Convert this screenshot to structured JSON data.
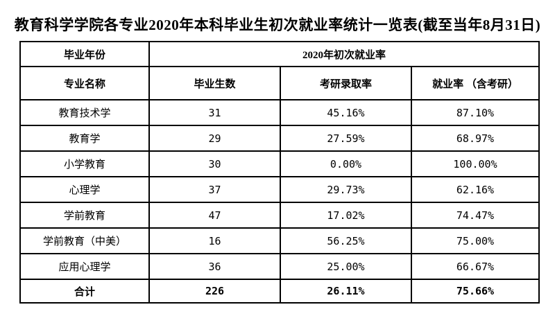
{
  "title": "教育科学学院各专业2020年本科毕业生初次就业率统计一览表(截至当年8月31日)",
  "colors": {
    "border": "#000000",
    "text": "#000000",
    "background": "#ffffff"
  },
  "table": {
    "header_row1": {
      "year_label": "毕业年份",
      "span_label": "2020年初次就业率"
    },
    "header_row2": {
      "major": "专业名称",
      "graduates": "毕业生数",
      "kaoyan_rate": "考研录取率",
      "employment_rate": "就业率 （含考研）"
    },
    "rows": [
      {
        "major": "教育技术学",
        "graduates": "31",
        "kaoyan_rate": "45.16%",
        "employment_rate": "87.10%"
      },
      {
        "major": "教育学",
        "graduates": "29",
        "kaoyan_rate": "27.59%",
        "employment_rate": "68.97%"
      },
      {
        "major": "小学教育",
        "graduates": "30",
        "kaoyan_rate": "0.00%",
        "employment_rate": "100.00%"
      },
      {
        "major": "心理学",
        "graduates": "37",
        "kaoyan_rate": "29.73%",
        "employment_rate": "62.16%"
      },
      {
        "major": "学前教育",
        "graduates": "47",
        "kaoyan_rate": "17.02%",
        "employment_rate": "74.47%"
      },
      {
        "major": "学前教育（中美）",
        "graduates": "16",
        "kaoyan_rate": "56.25%",
        "employment_rate": "75.00%"
      },
      {
        "major": "应用心理学",
        "graduates": "36",
        "kaoyan_rate": "25.00%",
        "employment_rate": "66.67%"
      }
    ],
    "total_row": {
      "label": "合计",
      "graduates": "226",
      "kaoyan_rate": "26.11%",
      "employment_rate": "75.66%"
    }
  }
}
